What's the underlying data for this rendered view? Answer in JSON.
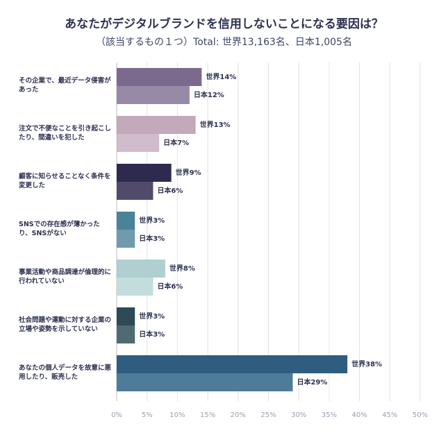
{
  "title": "あなたがデジタルブランドを信用しないことになる要因は？",
  "subtitle": "（該当するもの１つ）Total: 世界13,163名、日本1,005名",
  "chart_data": {
    "type": "bar",
    "orientation": "horizontal",
    "categories": [
      "その企業で、最近データ侵害があった",
      "注文で不便なことを引き起こしたり、間違いを犯した",
      "顧客に知らせることなく条件を変更した",
      "SNSでの存在感が薄かったり、SNSがない",
      "事業活動や商品調達が倫理的に行われていない",
      "社会問題や運動に対する企業の立場や姿勢を示していない",
      "あなたの個人データを故意に悪用したり、販売した"
    ],
    "series": [
      {
        "name": "世界",
        "values": [
          14,
          13,
          9,
          3,
          8,
          3,
          38
        ],
        "colors": [
          "#7b6a8e",
          "#c3a9ba",
          "#2e2a4f",
          "#4a8298",
          "#afcfd0",
          "#2d4a55",
          "#2e5d80"
        ]
      },
      {
        "name": "日本",
        "values": [
          12,
          7,
          6,
          3,
          6,
          3,
          29
        ],
        "colors": [
          "#968aa6",
          "#d1bccb",
          "#524a6b",
          "#6e9bae",
          "#c3dcdc",
          "#4f6a73",
          "#4d7b98"
        ]
      }
    ],
    "xlim": [
      0,
      50
    ],
    "xticks": [
      "0%",
      "5%",
      "10%",
      "15%",
      "20%",
      "25%",
      "30%",
      "35%",
      "40%",
      "45%",
      "50%"
    ],
    "grid": true
  }
}
